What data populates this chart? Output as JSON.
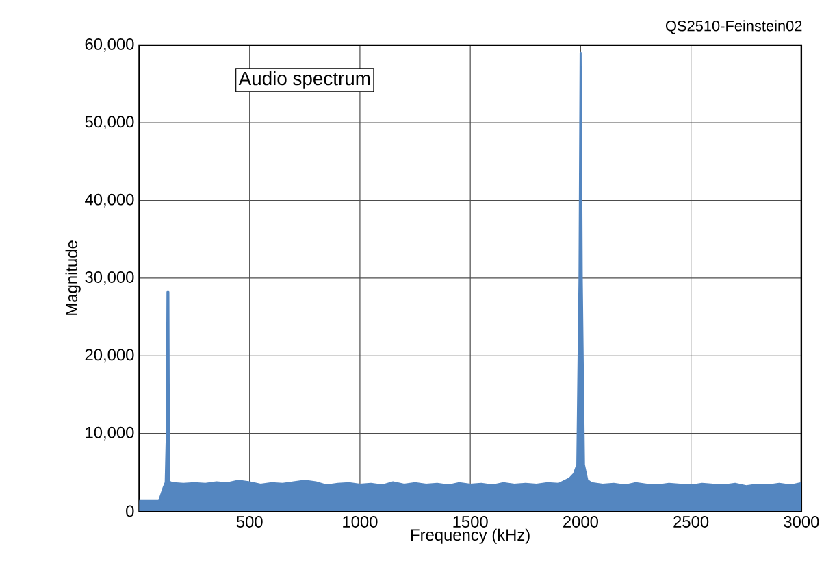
{
  "chart_data": {
    "type": "area",
    "title": "Audio spectrum",
    "xlabel": "Frequency (kHz)",
    "ylabel": "Magnitude",
    "annotations": [
      "QS2510-Feinstein02"
    ],
    "xlim": [
      0,
      3000
    ],
    "xticks": [
      500,
      1000,
      1500,
      2000,
      2500,
      3000
    ],
    "ylim": [
      0,
      60000
    ],
    "yticks": [
      {
        "value": 0,
        "label": "0"
      },
      {
        "value": 10000,
        "label": "10,000"
      },
      {
        "value": 20000,
        "label": "20,000"
      },
      {
        "value": 30000,
        "label": "30,000"
      },
      {
        "value": 40000,
        "label": "40,000"
      },
      {
        "value": 50000,
        "label": "50,000"
      },
      {
        "value": 60000,
        "label": "60,000"
      }
    ],
    "grid": true,
    "series": [
      {
        "color": "#5486c0",
        "x": [
          0,
          90,
          110,
          120,
          125,
          128,
          132,
          135,
          150,
          200,
          250,
          300,
          350,
          400,
          450,
          500,
          550,
          600,
          650,
          700,
          750,
          800,
          850,
          900,
          950,
          1000,
          1050,
          1100,
          1150,
          1200,
          1250,
          1300,
          1350,
          1400,
          1450,
          1500,
          1550,
          1600,
          1650,
          1700,
          1750,
          1800,
          1850,
          1900,
          1950,
          1970,
          1985,
          1995,
          2000,
          2005,
          2015,
          2030,
          2050,
          2100,
          2150,
          2200,
          2250,
          2300,
          2350,
          2400,
          2450,
          2500,
          2550,
          2600,
          2650,
          2700,
          2750,
          2800,
          2850,
          2900,
          2950,
          3000
        ],
        "values": [
          1300,
          1300,
          3000,
          3700,
          10000,
          28200,
          28200,
          3800,
          3600,
          3500,
          3600,
          3500,
          3700,
          3600,
          3900,
          3700,
          3400,
          3600,
          3500,
          3700,
          3900,
          3700,
          3300,
          3500,
          3600,
          3400,
          3500,
          3300,
          3700,
          3400,
          3600,
          3400,
          3500,
          3300,
          3600,
          3400,
          3500,
          3300,
          3600,
          3400,
          3500,
          3400,
          3600,
          3500,
          4200,
          4800,
          6000,
          30000,
          59000,
          30000,
          6000,
          4000,
          3600,
          3400,
          3500,
          3300,
          3600,
          3400,
          3300,
          3500,
          3400,
          3300,
          3500,
          3400,
          3300,
          3500,
          3200,
          3400,
          3300,
          3500,
          3300,
          3600
        ]
      }
    ]
  }
}
